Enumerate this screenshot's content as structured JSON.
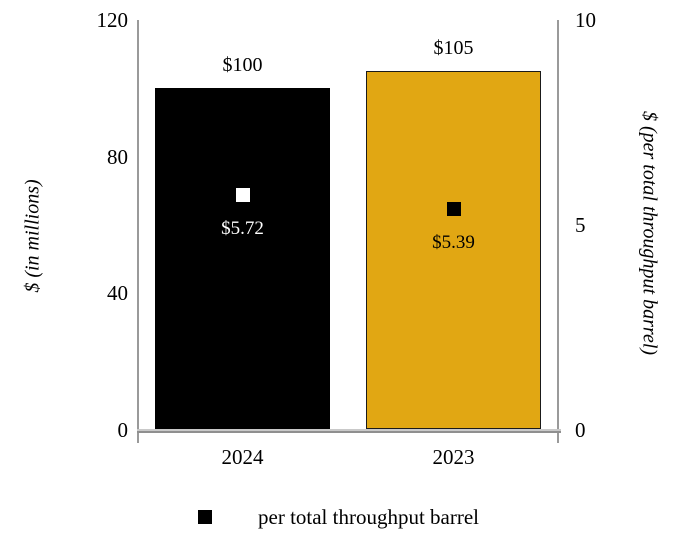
{
  "chart_data": {
    "type": "bar",
    "title": "",
    "categories": [
      "2024",
      "2023"
    ],
    "series": [
      {
        "name": "$ (in millions)",
        "type": "bar",
        "axis": "left",
        "values": [
          100,
          105
        ],
        "data_labels": [
          "$100",
          "$105"
        ],
        "bar_colors": [
          "#000000",
          "#e1a713"
        ],
        "bar_border_colors": [
          "#000000",
          "#1a1a1a"
        ]
      },
      {
        "name": "per total throughput barrel",
        "type": "scatter",
        "axis": "right",
        "values": [
          5.72,
          5.39
        ],
        "data_labels": [
          "$5.72",
          "$5.39"
        ],
        "marker_colors": [
          "#ffffff",
          "#000000"
        ],
        "label_colors": [
          "#ffffff",
          "#000000"
        ]
      }
    ],
    "left_axis": {
      "label": "$ (in millions)",
      "range": [
        0,
        120
      ],
      "ticks": [
        120,
        80,
        40,
        0
      ]
    },
    "right_axis": {
      "label": "$ (per total throughput barrel)",
      "range": [
        0,
        10
      ],
      "ticks": [
        10,
        5,
        0
      ]
    },
    "legend": {
      "marker_color": "#000000",
      "label": "per total throughput barrel",
      "position": "bottom"
    },
    "grid": false
  },
  "colors": {
    "background": "#ffffff",
    "axis_line": "#9a9a9a",
    "text": "#000000"
  }
}
